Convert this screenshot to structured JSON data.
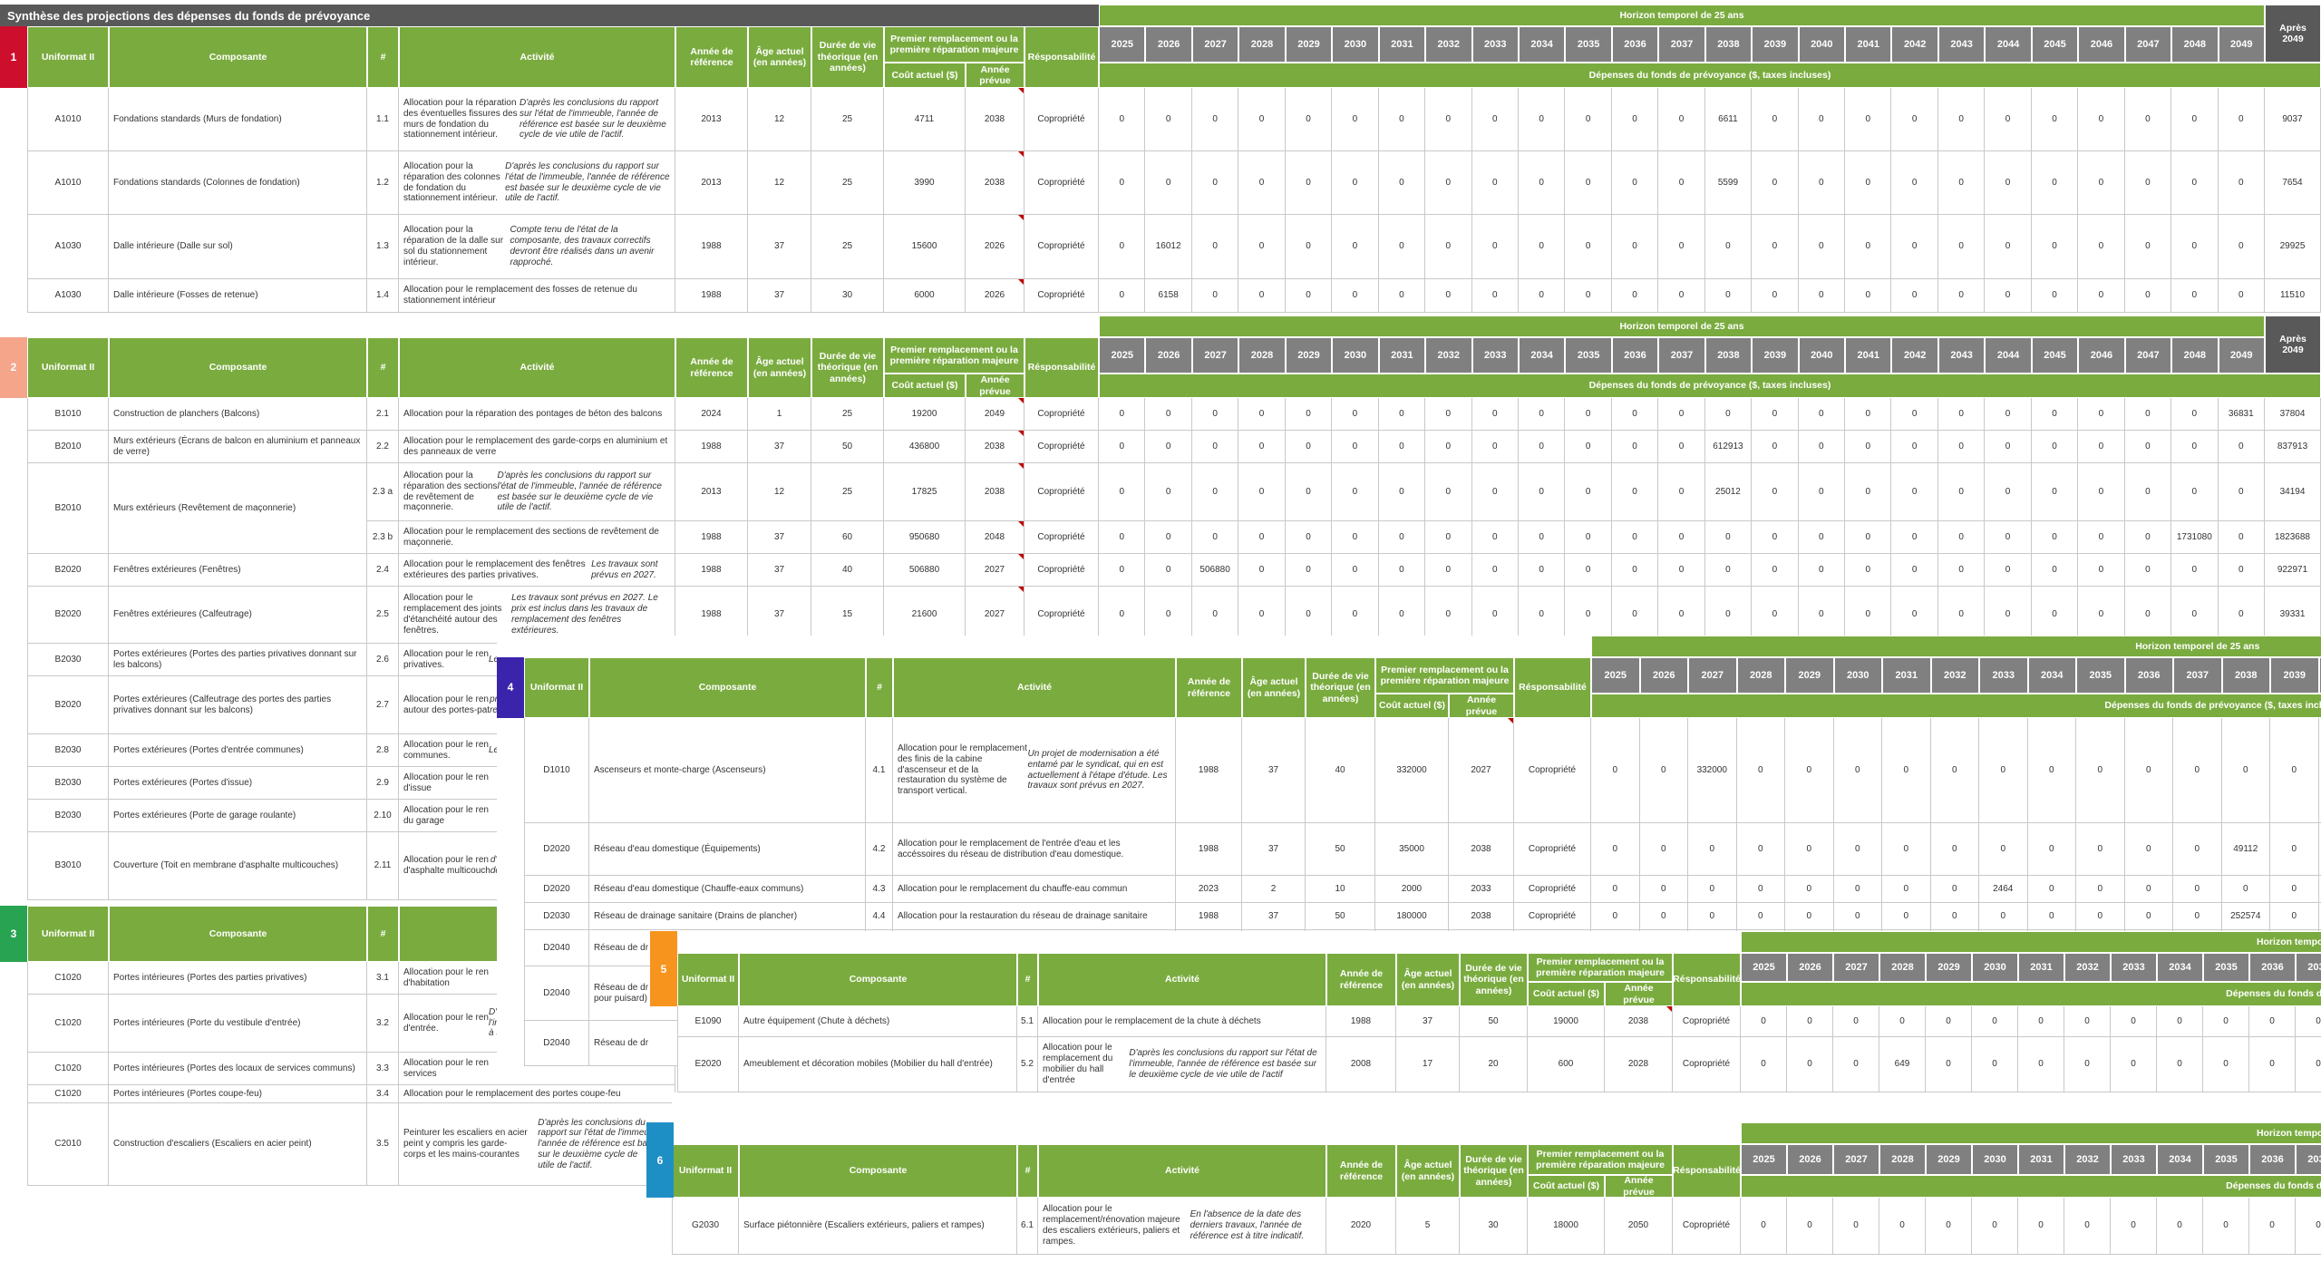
{
  "title": "Synthèse des projections des dépenses du fonds de prévoyance",
  "horizon_label": "Horizon temporel de 25 ans",
  "depenses_label": "Dépenses du fonds de prévoyance ($, taxes incluses)",
  "apres_label": "Après\n2049",
  "years": [
    "2025",
    "2026",
    "2027",
    "2028",
    "2029",
    "2030",
    "2031",
    "2032",
    "2033",
    "2034",
    "2035",
    "2036",
    "2037",
    "2038",
    "2039",
    "2040",
    "2041",
    "2042",
    "2043",
    "2044",
    "2045",
    "2046",
    "2047",
    "2048",
    "2049"
  ],
  "columns": {
    "uniformat": "Uniformat II",
    "composante": "Composante",
    "num": "#",
    "activite": "Activité",
    "annee_ref": "Année de référence",
    "age": "Âge actuel (en années)",
    "duree": "Durée de vie théorique (en années)",
    "premier": "Premier remplacement ou la première réparation majeure",
    "cout": "Coût actuel ($)",
    "annee_prevue": "Année prévue",
    "resp": "Résponsabilité"
  },
  "colors": {
    "header_green": "#7AAB3F",
    "year_gray": "#808080",
    "dark_gray": "#595959",
    "comment_red": "#C00000"
  },
  "sections": [
    {
      "id": "1",
      "marker_color": "#CE0E2D",
      "rows": [
        {
          "u": "A1010",
          "comp": "Fondations standards (Murs de fondation)",
          "n": "1.1",
          "act": [
            {
              "t": "Allocation pour la réparation des éventuelles fissures des murs de fondation du stationnement intérieur. ",
              "i": false
            },
            {
              "t": "D'après les conclusions du rapport sur l'état de l'immeuble, l'année de référence est basée sur le deuxième cycle de vie utile de l'actif.",
              "i": true
            }
          ],
          "ref": "2013",
          "age": "12",
          "dur": "25",
          "cout": "4711",
          "prev": "2038",
          "c": true,
          "resp": "Copropriété",
          "vals": {
            "2038": "6611",
            "apres": "9037"
          }
        },
        {
          "u": "A1010",
          "comp": "Fondations standards (Colonnes de fondation)",
          "n": "1.2",
          "act": [
            {
              "t": "Allocation pour la réparation des colonnes de fondation du stationnement intérieur. ",
              "i": false
            },
            {
              "t": "D'après les conclusions du rapport sur l'état de l'immeuble, l'année de référence est basée sur le deuxième cycle de vie utile de l'actif.",
              "i": true
            }
          ],
          "ref": "2013",
          "age": "12",
          "dur": "25",
          "cout": "3990",
          "prev": "2038",
          "c": true,
          "resp": "Copropriété",
          "vals": {
            "2038": "5599",
            "apres": "7654"
          }
        },
        {
          "u": "A1030",
          "comp": "Dalle intérieure (Dalle sur sol)",
          "n": "1.3",
          "act": [
            {
              "t": "Allocation pour la réparation de la dalle sur sol du stationnement intérieur. ",
              "i": false
            },
            {
              "t": "Compte tenu de l'état de la composante, des travaux correctifs devront être réalisés dans un avenir rapproché.",
              "i": true
            }
          ],
          "ref": "1988",
          "age": "37",
          "dur": "25",
          "cout": "15600",
          "prev": "2026",
          "c": true,
          "resp": "Copropriété",
          "vals": {
            "2026": "16012",
            "apres": "29925"
          }
        },
        {
          "u": "A1030",
          "comp": "Dalle intérieure (Fosses de retenue)",
          "n": "1.4",
          "act": [
            {
              "t": "Allocation pour le remplacement des fosses de retenue du stationnement intérieur",
              "i": false
            }
          ],
          "ref": "1988",
          "age": "37",
          "dur": "30",
          "cout": "6000",
          "prev": "2026",
          "c": true,
          "resp": "Copropriété",
          "vals": {
            "2026": "6158",
            "apres": "11510"
          }
        }
      ]
    },
    {
      "id": "2",
      "marker_color": "#F4A58A",
      "rows": [
        {
          "u": "B1010",
          "comp": "Construction de planchers (Balcons)",
          "n": "2.1",
          "act": [
            {
              "t": "Allocation pour la réparation des pontages de béton des balcons",
              "i": false
            }
          ],
          "ref": "2024",
          "age": "1",
          "dur": "25",
          "cout": "19200",
          "prev": "2049",
          "c": true,
          "resp": "Copropriété",
          "vals": {
            "2049": "36831",
            "apres": "37804"
          }
        },
        {
          "u": "B2010",
          "comp": "Murs extérieurs (Écrans de balcon en aluminium et panneaux de verre)",
          "n": "2.2",
          "act": [
            {
              "t": "Allocation pour le remplacement des garde-corps en aluminium et des panneaux de verre",
              "i": false
            }
          ],
          "ref": "1988",
          "age": "37",
          "dur": "50",
          "cout": "436800",
          "prev": "2038",
          "c": true,
          "resp": "Copropriété",
          "vals": {
            "2038": "612913",
            "apres": "837913"
          }
        },
        {
          "u": "B2010",
          "comp": "Murs extérieurs (Revêtement de maçonnerie)",
          "n": "2.3 a",
          "span": 2,
          "act": [
            {
              "t": "Allocation pour la réparation des sections de revêtement de maçonnerie. ",
              "i": false
            },
            {
              "t": "D'après les conclusions du rapport sur l'état de l'immeuble, l'année de référence est basée sur le deuxième cycle de vie utile de l'actif.",
              "i": true
            }
          ],
          "ref": "2013",
          "age": "12",
          "dur": "25",
          "cout": "17825",
          "prev": "2038",
          "c": true,
          "resp": "Copropriété",
          "vals": {
            "2038": "25012",
            "apres": "34194"
          }
        },
        {
          "u": "",
          "comp": "",
          "n": "2.3 b",
          "cont": true,
          "act": [
            {
              "t": "Allocation pour le remplacement des sections de revêtement de maçonnerie.",
              "i": false
            }
          ],
          "ref": "1988",
          "age": "37",
          "dur": "60",
          "cout": "950680",
          "prev": "2048",
          "c": true,
          "resp": "Copropriété",
          "vals": {
            "2048": "1731080",
            "apres": "1823688"
          }
        },
        {
          "u": "B2020",
          "comp": "Fenêtres extérieures (Fenêtres)",
          "n": "2.4",
          "act": [
            {
              "t": "Allocation pour le remplacement des fenêtres extérieures des parties privatives. ",
              "i": false
            },
            {
              "t": "Les travaux sont prévus en 2027.",
              "i": true
            }
          ],
          "ref": "1988",
          "age": "37",
          "dur": "40",
          "cout": "506880",
          "prev": "2027",
          "c": true,
          "resp": "Copropriété",
          "vals": {
            "2027": "506880",
            "apres": "922971"
          }
        },
        {
          "u": "B2020",
          "comp": "Fenêtres extérieures (Calfeutrage)",
          "n": "2.5",
          "act": [
            {
              "t": "Allocation pour le remplacement des joints d'étanchéité autour des fenêtres. ",
              "i": false
            },
            {
              "t": "Les travaux sont prévus en 2027. Le prix est inclus dans les travaux de remplacement des fenêtres extérieures.",
              "i": true
            }
          ],
          "ref": "1988",
          "age": "37",
          "dur": "15",
          "cout": "21600",
          "prev": "2027",
          "c": true,
          "resp": "Copropriété",
          "vals": {
            "apres": "39331"
          }
        },
        {
          "u": "B2030",
          "comp": "Portes extérieures (Portes des parties privatives donnant sur les balcons)",
          "n": "2.6",
          "hidden": true,
          "act": [
            {
              "t": "Allocation pour le ren\nprivatives. ",
              "i": false
            },
            {
              "t": "Les travau",
              "i": true
            }
          ],
          "ref": "",
          "age": "",
          "dur": "",
          "cout": "",
          "prev": "",
          "resp": "",
          "vals": {}
        },
        {
          "u": "B2020",
          "comp": "Portes extérieures (Calfeutrage des portes des parties privatives donnant sur les balcons)",
          "n": "2.7",
          "hidden": true,
          "act": [
            {
              "t": "Allocation pour le ren\nautour des portes-pat\n",
              "i": false
            },
            {
              "t": "prévus en 2027. Le pr\nremplacement des po",
              "i": true
            }
          ],
          "ref": "",
          "age": "",
          "dur": "",
          "cout": "",
          "prev": "",
          "resp": "",
          "vals": {}
        },
        {
          "u": "B2030",
          "comp": "Portes extérieures (Portes d'entrée communes)",
          "n": "2.8",
          "hidden": true,
          "act": [
            {
              "t": "Allocation pour le ren\ncommunes. ",
              "i": false
            },
            {
              "t": "Les trava",
              "i": true
            }
          ],
          "ref": "",
          "age": "",
          "dur": "",
          "cout": "",
          "prev": "",
          "resp": "",
          "vals": {}
        },
        {
          "u": "B2030",
          "comp": "Portes extérieures (Portes d'issue)",
          "n": "2.9",
          "hidden": true,
          "act": [
            {
              "t": "Allocation pour le ren\nd'issue",
              "i": false
            }
          ],
          "ref": "",
          "age": "",
          "dur": "",
          "cout": "",
          "prev": "",
          "resp": "",
          "vals": {}
        },
        {
          "u": "B2030",
          "comp": "Portes extérieures (Porte de garage roulante)",
          "n": "2.10",
          "hidden": true,
          "act": [
            {
              "t": "Allocation pour le ren\ndu garage",
              "i": false
            }
          ],
          "ref": "",
          "age": "",
          "dur": "",
          "cout": "",
          "prev": "",
          "resp": "",
          "vals": {}
        },
        {
          "u": "B3010",
          "comp": "Couverture (Toit en membrane d'asphalte multicouches)",
          "n": "2.11",
          "hidden": true,
          "act": [
            {
              "t": "Allocation pour le ren\nd'asphalte multicouch\n",
              "i": false
            },
            {
              "t": "d'informations sur la \nde référence est donn",
              "i": true
            }
          ],
          "ref": "",
          "age": "",
          "dur": "",
          "cout": "",
          "prev": "",
          "resp": "",
          "vals": {}
        }
      ]
    },
    {
      "id": "3",
      "marker_color": "#28A351",
      "rows": [
        {
          "u": "C1020",
          "comp": "Portes intérieures (Portes des parties privatives)",
          "n": "3.1",
          "act": [
            {
              "t": "Allocation pour le ren\nd'habitation",
              "i": false
            }
          ]
        },
        {
          "u": "C1020",
          "comp": "Portes intérieures (Porte du vestibule d'entrée)",
          "n": "3.2",
          "act": [
            {
              "t": "Allocation pour le ren\nd'entrée. ",
              "i": false
            },
            {
              "t": "D'après les \nl'immeuble, la durée \nà 50 ans.",
              "i": true
            }
          ]
        },
        {
          "u": "C1020",
          "comp": "Portes intérieures (Portes des locaux de services communs)",
          "n": "3.3",
          "act": [
            {
              "t": "Allocation pour le ren\nservices",
              "i": false
            }
          ]
        },
        {
          "u": "C1020",
          "comp": "Portes intérieures (Portes coupe-feu)",
          "n": "3.4",
          "act": [
            {
              "t": "Allocation pour le remplacement des portes coupe-feu",
              "i": false
            }
          ]
        },
        {
          "u": "C2010",
          "comp": "Construction d'escaliers (Escaliers en acier peint)",
          "n": "3.5",
          "act": [
            {
              "t": "Peinturer les escaliers en acier peint y compris les garde-\ncorps et les mains-courantes\n",
              "i": false
            },
            {
              "t": "D'après les conclusions du rapport sur l'état de l'immeu\nl'année de référence est basée sur le deuxième cycle de\nutile de l'actif.",
              "i": true
            }
          ]
        }
      ]
    },
    {
      "id": "4",
      "marker_color": "#3B24AC",
      "rows": [
        {
          "u": "D1010",
          "comp": "Ascenseurs et monte-charge (Ascenseurs)",
          "n": "4.1",
          "act": [
            {
              "t": "Allocation pour le remplacement des finis de la cabine d'ascenseur et de la restauration du système de transport vertical.\n",
              "i": false
            },
            {
              "t": "Un projet de modernisation a été entamé par le syndicat, qui en est actuellement à l'étape d'étude. Les travaux sont prévus en 2027.",
              "i": true
            }
          ],
          "ref": "1988",
          "age": "37",
          "dur": "40",
          "cout": "332000",
          "prev": "2027",
          "c": true,
          "resp": "Copropriété",
          "vals": {
            "2027": "332000"
          }
        },
        {
          "u": "D2020",
          "comp": "Réseau d'eau domestique (Équipements)",
          "n": "4.2",
          "act": [
            {
              "t": "Allocation pour le remplacement de l'entrée d'eau et les accéssoires du réseau de distribution d'eau domestique.",
              "i": false
            }
          ],
          "ref": "1988",
          "age": "37",
          "dur": "50",
          "cout": "35000",
          "prev": "2038",
          "resp": "Copropriété",
          "vals": {
            "2038": "49112"
          }
        },
        {
          "u": "D2020",
          "comp": "Réseau d'eau domestique (Chauffe-eaux communs)",
          "n": "4.3",
          "act": [
            {
              "t": "Allocation pour le remplacement du chauffe-eau commun",
              "i": false
            }
          ],
          "ref": "2023",
          "age": "2",
          "dur": "10",
          "cout": "2000",
          "prev": "2033",
          "resp": "Copropriété",
          "vals": {
            "2033": "2464"
          }
        },
        {
          "u": "D2030",
          "comp": "Réseau de drainage sanitaire (Drains de plancher)",
          "n": "4.4",
          "act": [
            {
              "t": "Allocation pour la restauration du réseau de drainage sanitaire",
              "i": false
            }
          ],
          "ref": "1988",
          "age": "37",
          "dur": "50",
          "cout": "180000",
          "prev": "2038",
          "resp": "Copropriété",
          "vals": {
            "2038": "252574"
          }
        },
        {
          "u": "D2040",
          "comp": "Réseau de dr",
          "n": "",
          "hidden": true,
          "act": [],
          "ref": "",
          "age": "",
          "dur": "",
          "cout": "",
          "prev": "",
          "resp": "",
          "vals": {}
        },
        {
          "u": "D2040",
          "comp": "Réseau de dr\npour puisard)",
          "n": "",
          "hidden": true,
          "act": [],
          "ref": "",
          "age": "",
          "dur": "",
          "cout": "",
          "prev": "",
          "resp": "",
          "vals": {}
        },
        {
          "u": "D2040",
          "comp": "Réseau de dr",
          "n": "",
          "hidden": true,
          "act": [],
          "ref": "",
          "age": "",
          "dur": "",
          "cout": "",
          "prev": "",
          "resp": "",
          "vals": {}
        }
      ]
    },
    {
      "id": "5",
      "marker_color": "#F7941E",
      "rows": [
        {
          "u": "E1090",
          "comp": "Autre équipement (Chute à déchets)",
          "n": "5.1",
          "act": [
            {
              "t": "Allocation pour le remplacement de la chute à déchets",
              "i": false
            }
          ],
          "ref": "1988",
          "age": "37",
          "dur": "50",
          "cout": "19000",
          "prev": "2038",
          "c": true,
          "resp": "Copropriété",
          "vals": {}
        },
        {
          "u": "E2020",
          "comp": "Ameublement et décoration mobiles (Mobilier du hall d'entrée)",
          "n": "5.2",
          "act": [
            {
              "t": "Allocation pour le remplacement du mobilier du hall d'entrée\n",
              "i": false
            },
            {
              "t": "D'après les conclusions du rapport sur l'état de l'immeuble, l'année de référence est basée sur le deuxième cycle de vie utile de l'actif",
              "i": true
            }
          ],
          "ref": "2008",
          "age": "17",
          "dur": "20",
          "cout": "600",
          "prev": "2028",
          "resp": "Copropriété",
          "vals": {
            "2028": "649"
          }
        }
      ]
    },
    {
      "id": "6",
      "marker_color": "#1E8FC5",
      "rows": [
        {
          "u": "G2030",
          "comp": "Surface piétonnière (Escaliers extérieurs, paliers et rampes)",
          "n": "6.1",
          "act": [
            {
              "t": "Allocation pour le remplacement/rénovation majeure des escaliers extérieurs, paliers et rampes.\n",
              "i": false
            },
            {
              "t": "En l'absence de la date des derniers travaux, l'année de référence est à titre indicatif.",
              "i": true
            }
          ],
          "ref": "2020",
          "age": "5",
          "dur": "30",
          "cout": "18000",
          "prev": "2050",
          "resp": "Copropriété",
          "vals": {}
        }
      ]
    }
  ]
}
